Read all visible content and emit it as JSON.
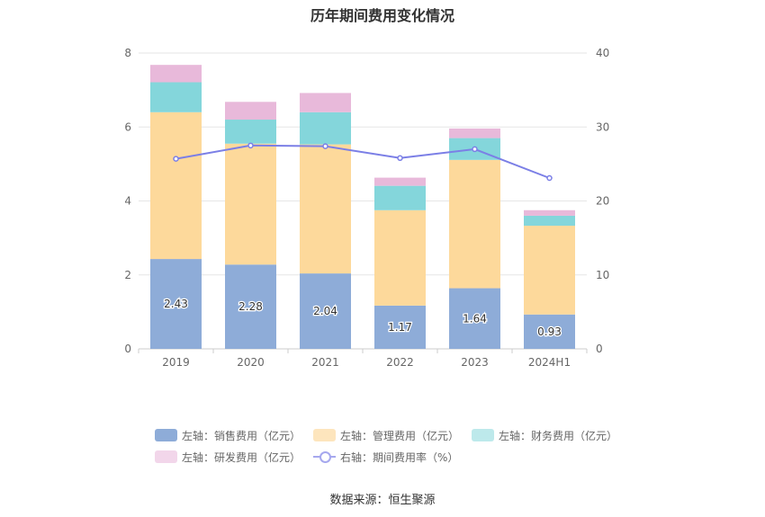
{
  "chart_data": {
    "type": "bar",
    "stacked": true,
    "title": "历年期间费用变化情况",
    "categories": [
      "2019",
      "2020",
      "2021",
      "2022",
      "2023",
      "2024H1"
    ],
    "y_left": {
      "ylim": [
        0,
        8
      ],
      "ticks": [
        "0",
        "2",
        "4",
        "6",
        "8"
      ]
    },
    "y_right": {
      "ylim": [
        0,
        40
      ],
      "ticks": [
        "0",
        "10",
        "20",
        "30",
        "40"
      ]
    },
    "grid": true,
    "legend_position": "bottom",
    "series": [
      {
        "name": "左轴：销售费用（亿元）",
        "axis": "left",
        "type": "bar",
        "color": "#8eacd8",
        "values": [
          2.43,
          2.28,
          2.04,
          1.17,
          1.64,
          0.93
        ],
        "labels": [
          "2.43",
          "2.28",
          "2.04",
          "1.17",
          "1.64",
          "0.93"
        ]
      },
      {
        "name": "左轴：管理费用（亿元）",
        "axis": "left",
        "type": "bar",
        "color": "#fdd99b",
        "values": [
          3.97,
          3.27,
          3.49,
          2.58,
          3.47,
          2.4
        ]
      },
      {
        "name": "左轴：财务费用（亿元）",
        "axis": "left",
        "type": "bar",
        "color": "#84d6db",
        "values": [
          0.81,
          0.65,
          0.87,
          0.66,
          0.59,
          0.27
        ]
      },
      {
        "name": "左轴：研发费用（亿元）",
        "axis": "left",
        "type": "bar",
        "color": "#e8b9da",
        "values": [
          0.47,
          0.48,
          0.52,
          0.22,
          0.26,
          0.15
        ]
      },
      {
        "name": "右轴：期间费用率（%）",
        "axis": "right",
        "type": "line",
        "color": "#7b7fe6",
        "values": [
          25.7,
          27.5,
          27.4,
          25.8,
          27.0,
          23.1
        ]
      }
    ]
  },
  "legend": {
    "items": [
      {
        "label": "左轴：销售费用（亿元）",
        "color": "#8eacd8"
      },
      {
        "label": "左轴：管理费用（亿元）",
        "color": "#fde5bd"
      },
      {
        "label": "左轴：财务费用（亿元）",
        "color": "#bde9eb"
      },
      {
        "label": "左轴：研发费用（亿元）",
        "color": "#f2d6ea"
      },
      {
        "label": "右轴：期间费用率（%）",
        "color": "#a6a8ee"
      }
    ]
  },
  "source": "数据来源：恒生聚源"
}
